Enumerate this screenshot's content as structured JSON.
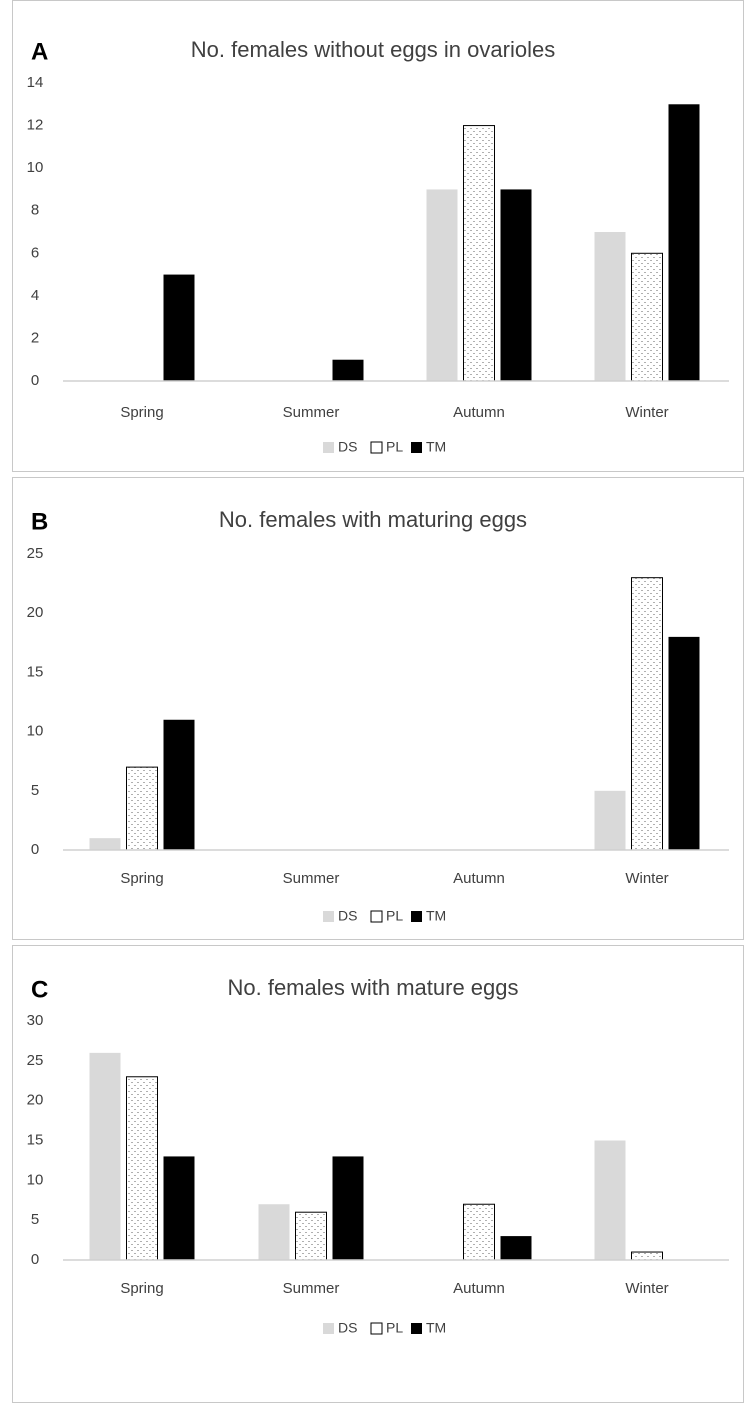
{
  "colors": {
    "DS": "#d9d9d9",
    "PL_fill": "#ffffff",
    "PL_pattern": "#b0b0b0",
    "TM": "#000000",
    "axis": "#d0d0d0",
    "text": "#404040"
  },
  "chart_data": [
    {
      "type": "bar",
      "panel_label": "A",
      "title": "No. females without eggs in ovarioles",
      "categories": [
        "Spring",
        "Summer",
        "Autumn",
        "Winter"
      ],
      "series": [
        {
          "name": "DS",
          "values": [
            0,
            0,
            9,
            7
          ]
        },
        {
          "name": "PL",
          "values": [
            0,
            0,
            12,
            6
          ]
        },
        {
          "name": "TM",
          "values": [
            5,
            1,
            9,
            13
          ]
        }
      ],
      "yticks": [
        "0",
        "2",
        "4",
        "6",
        "8",
        "10",
        "12",
        "14"
      ],
      "ylim": [
        0,
        14
      ],
      "legend": "bottom",
      "grid": false
    },
    {
      "type": "bar",
      "panel_label": "B",
      "title": "No. females with maturing eggs",
      "categories": [
        "Spring",
        "Summer",
        "Autumn",
        "Winter"
      ],
      "series": [
        {
          "name": "DS",
          "values": [
            1,
            0,
            0,
            5
          ]
        },
        {
          "name": "PL",
          "values": [
            7,
            0,
            0,
            23
          ]
        },
        {
          "name": "TM",
          "values": [
            11,
            0,
            0,
            18
          ]
        }
      ],
      "yticks": [
        "0",
        "5",
        "10",
        "15",
        "20",
        "25"
      ],
      "ylim": [
        0,
        25
      ],
      "legend": "bottom",
      "grid": false
    },
    {
      "type": "bar",
      "panel_label": "C",
      "title": "No. females with mature eggs",
      "categories": [
        "Spring",
        "Summer",
        "Autumn",
        "Winter"
      ],
      "series": [
        {
          "name": "DS",
          "values": [
            26,
            7,
            0,
            15
          ]
        },
        {
          "name": "PL",
          "values": [
            23,
            6,
            7,
            1
          ]
        },
        {
          "name": "TM",
          "values": [
            13,
            13,
            3,
            0
          ]
        }
      ],
      "yticks": [
        "0",
        "5",
        "10",
        "15",
        "20",
        "25",
        "30"
      ],
      "ylim": [
        0,
        30
      ],
      "legend": "bottom",
      "grid": false
    }
  ]
}
